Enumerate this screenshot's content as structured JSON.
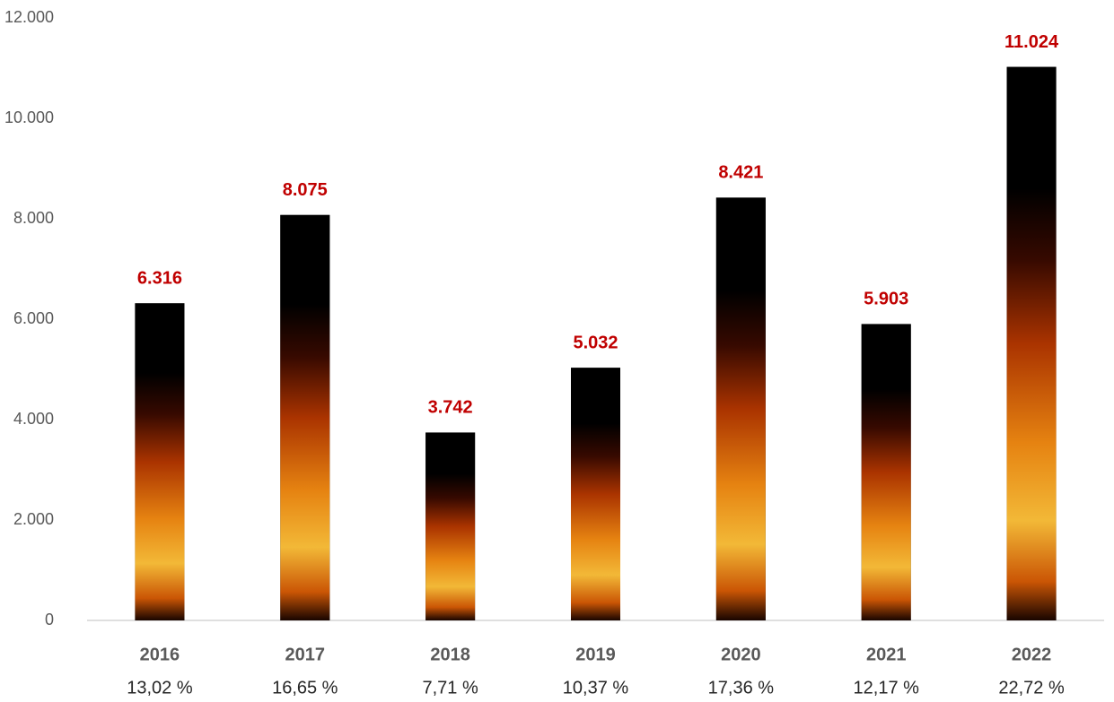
{
  "chart_data": {
    "type": "bar",
    "categories": [
      "2016",
      "2017",
      "2018",
      "2019",
      "2020",
      "2021",
      "2022"
    ],
    "category_sublabels": [
      "13,02 %",
      "16,65 %",
      "7,71 %",
      "10,37 %",
      "17,36 %",
      "12,17 %",
      "22,72 %"
    ],
    "values": [
      6316,
      8075,
      3742,
      5032,
      8421,
      5903,
      11024
    ],
    "value_labels": [
      "6.316",
      "8.075",
      "3.742",
      "5.032",
      "8.421",
      "5.903",
      "11.024"
    ],
    "color": "#000000",
    "ylim": [
      0,
      12000
    ],
    "yticks": [
      0,
      {
        "value": 2000,
        "label": "2.000"
      },
      {
        "value": 4000,
        "label": "4.000"
      },
      {
        "value": 6000,
        "label": "6.000"
      },
      {
        "value": 8000,
        "label": "8.000"
      },
      {
        "value": 10000,
        "label": "10.000"
      },
      {
        "value": 12000,
        "label": "12.000"
      }
    ],
    "grid": false
  }
}
